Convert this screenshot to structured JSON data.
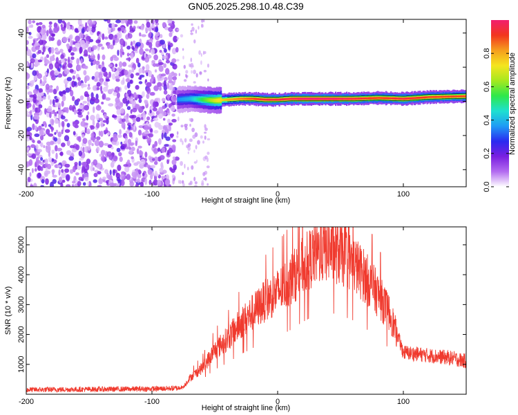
{
  "title": "GN05.2025.298.10.48.C39",
  "chart_data": [
    {
      "type": "heatmap",
      "name": "spectrogram",
      "xlabel": "Height of straight line (km)",
      "ylabel": "Frequency (Hz)",
      "xlim": [
        -200,
        150
      ],
      "ylim": [
        -50,
        48
      ],
      "xticks": [
        -200,
        -100,
        0,
        100
      ],
      "yticks": [
        -40,
        -20,
        0,
        20,
        40
      ],
      "colorbar": {
        "label": "Normalized spectral amplitude",
        "range": [
          0.0,
          1.0
        ],
        "ticks": [
          0.0,
          0.2,
          0.4,
          0.6,
          0.8
        ],
        "colors": [
          "#ffffff",
          "#b36cf0",
          "#7a1fe0",
          "#2a2af0",
          "#1f9bf5",
          "#1ee0d0",
          "#2ee84a",
          "#a6e81e",
          "#f5e51e",
          "#f59e1e",
          "#f2361e",
          "#f21e6e"
        ]
      },
      "noise_region_x": [
        -200,
        -80
      ],
      "signal_ridge": {
        "x": [
          -80,
          -70,
          -60,
          -50,
          -40,
          -30,
          -20,
          -10,
          0,
          10,
          20,
          40,
          60,
          80,
          100,
          120,
          150
        ],
        "freq_hz": [
          1,
          1.5,
          1,
          0.5,
          1,
          1.5,
          1.5,
          1,
          1,
          1.5,
          1.5,
          1.5,
          1.5,
          2,
          1.5,
          2.5,
          3
        ],
        "amplitude": [
          0.35,
          0.4,
          0.55,
          0.7,
          0.8,
          0.85,
          0.9,
          0.95,
          0.95,
          0.95,
          1.0,
          1.0,
          0.95,
          0.9,
          0.95,
          0.9,
          0.9
        ]
      }
    },
    {
      "type": "line",
      "name": "snr",
      "xlabel": "Height of straight line (km)",
      "ylabel": "SNR (10 * v/v)",
      "xlim": [
        -200,
        150
      ],
      "ylim": [
        0,
        5600
      ],
      "xticks": [
        -200,
        -100,
        0,
        100
      ],
      "yticks": [
        1000,
        2000,
        3000,
        4000,
        5000
      ],
      "color": "#f03a2e",
      "envelope": {
        "x": [
          -200,
          -100,
          -80,
          -75,
          -70,
          -60,
          -50,
          -40,
          -30,
          -20,
          -10,
          0,
          10,
          20,
          30,
          40,
          50,
          60,
          70,
          80,
          90,
          95,
          100,
          110,
          120,
          130,
          140,
          150
        ],
        "snr": [
          150,
          180,
          200,
          250,
          550,
          900,
          1500,
          1900,
          2400,
          2800,
          3200,
          3500,
          3900,
          4400,
          4800,
          5000,
          4800,
          4500,
          4000,
          3400,
          2700,
          2000,
          1400,
          1350,
          1300,
          1250,
          1200,
          1100
        ]
      }
    }
  ]
}
